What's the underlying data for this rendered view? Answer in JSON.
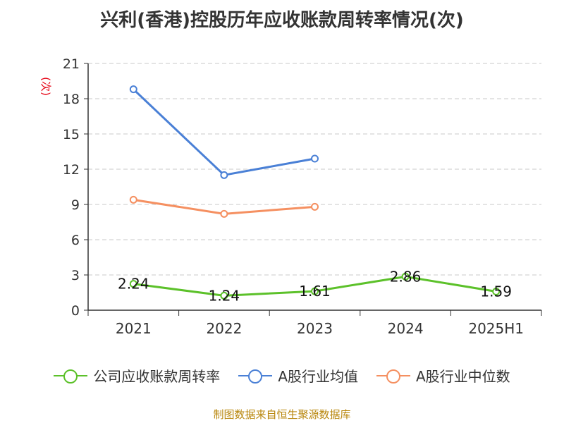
{
  "title": "兴利(香港)控股历年应收账款周转率情况(次)",
  "unit_label": "(次)",
  "source_note": "制图数据来自恒生聚源数据库",
  "chart_data": {
    "type": "line",
    "categories": [
      "2021",
      "2022",
      "2023",
      "2024",
      "2025H1"
    ],
    "ylim": [
      0,
      21
    ],
    "yticks": [
      0,
      3,
      6,
      9,
      12,
      15,
      18,
      21
    ],
    "grid": true,
    "legend_position": "bottom",
    "series": [
      {
        "name": "公司应收账款周转率",
        "color": "#5cc12a",
        "values": [
          2.24,
          1.24,
          1.61,
          2.86,
          1.59
        ],
        "labels": [
          "2.24",
          "1.24",
          "1.61",
          "2.86",
          "1.59"
        ]
      },
      {
        "name": "A股行业均值",
        "color": "#4a80d6",
        "values": [
          18.8,
          11.5,
          12.9,
          null,
          null
        ]
      },
      {
        "name": "A股行业中位数",
        "color": "#f59061",
        "values": [
          9.4,
          8.2,
          8.8,
          null,
          null
        ]
      }
    ]
  }
}
